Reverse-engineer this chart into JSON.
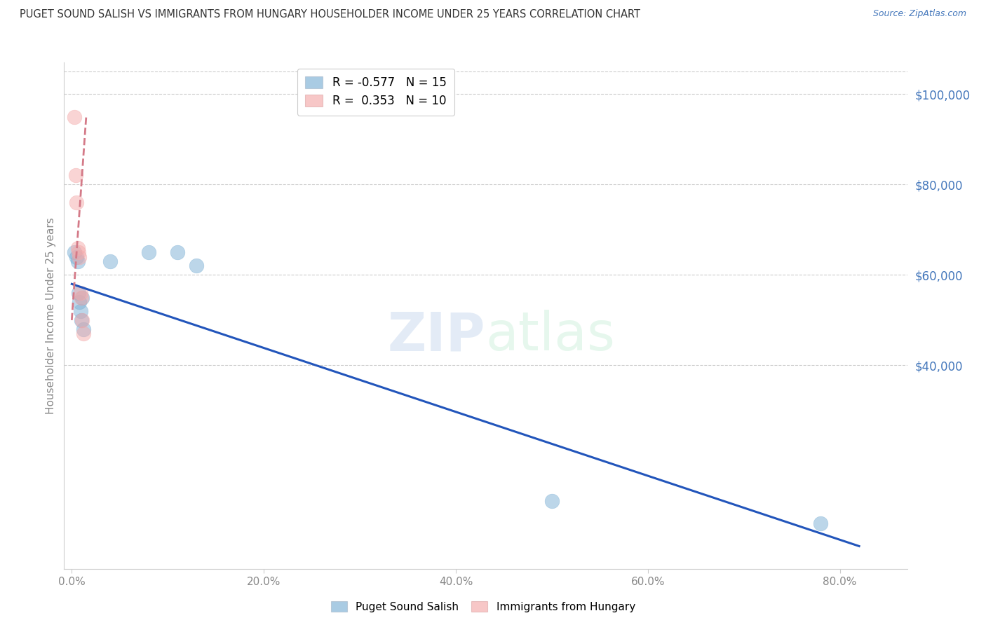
{
  "title": "PUGET SOUND SALISH VS IMMIGRANTS FROM HUNGARY HOUSEHOLDER INCOME UNDER 25 YEARS CORRELATION CHART",
  "source": "Source: ZipAtlas.com",
  "ylabel": "Householder Income Under 25 years",
  "xlabel_ticks": [
    "0.0%",
    "20.0%",
    "40.0%",
    "60.0%",
    "80.0%"
  ],
  "xlabel_vals": [
    0.0,
    0.2,
    0.4,
    0.6,
    0.8
  ],
  "ytick_labels": [
    "$40,000",
    "$60,000",
    "$80,000",
    "$100,000"
  ],
  "ytick_vals": [
    40000,
    60000,
    80000,
    100000
  ],
  "ylim": [
    -5000,
    107000
  ],
  "xlim": [
    -0.008,
    0.87
  ],
  "watermark": "ZIPatlas",
  "legend1_label": "R = -0.577   N = 15",
  "legend2_label": "R =  0.353   N = 10",
  "blue_color": "#7BAFD4",
  "pink_color": "#F4AAAA",
  "trend_blue": "#2255BB",
  "trend_pink": "#D47A88",
  "blue_scatter": {
    "x": [
      0.003,
      0.005,
      0.006,
      0.007,
      0.008,
      0.009,
      0.01,
      0.011,
      0.012,
      0.04,
      0.08,
      0.11,
      0.13,
      0.5,
      0.78
    ],
    "y": [
      65000,
      64000,
      63000,
      56000,
      54000,
      52000,
      50000,
      55000,
      48000,
      63000,
      65000,
      65000,
      62000,
      10000,
      5000
    ]
  },
  "pink_scatter": {
    "x": [
      0.003,
      0.004,
      0.005,
      0.006,
      0.007,
      0.008,
      0.009,
      0.01,
      0.011,
      0.012
    ],
    "y": [
      95000,
      82000,
      76000,
      66000,
      65000,
      64000,
      56000,
      55000,
      50000,
      47000
    ]
  },
  "blue_trendline": {
    "x": [
      0.0,
      0.82
    ],
    "y": [
      58000,
      0
    ]
  },
  "pink_trendline": {
    "x": [
      0.0,
      0.015
    ],
    "y": [
      50000,
      95000
    ]
  },
  "marker_size": 220,
  "grid_color": "#CCCCCC",
  "bg_color": "#FFFFFF",
  "title_color": "#333333",
  "axis_color": "#888888",
  "ytick_color": "#4477BB",
  "xtick_color": "#888888"
}
